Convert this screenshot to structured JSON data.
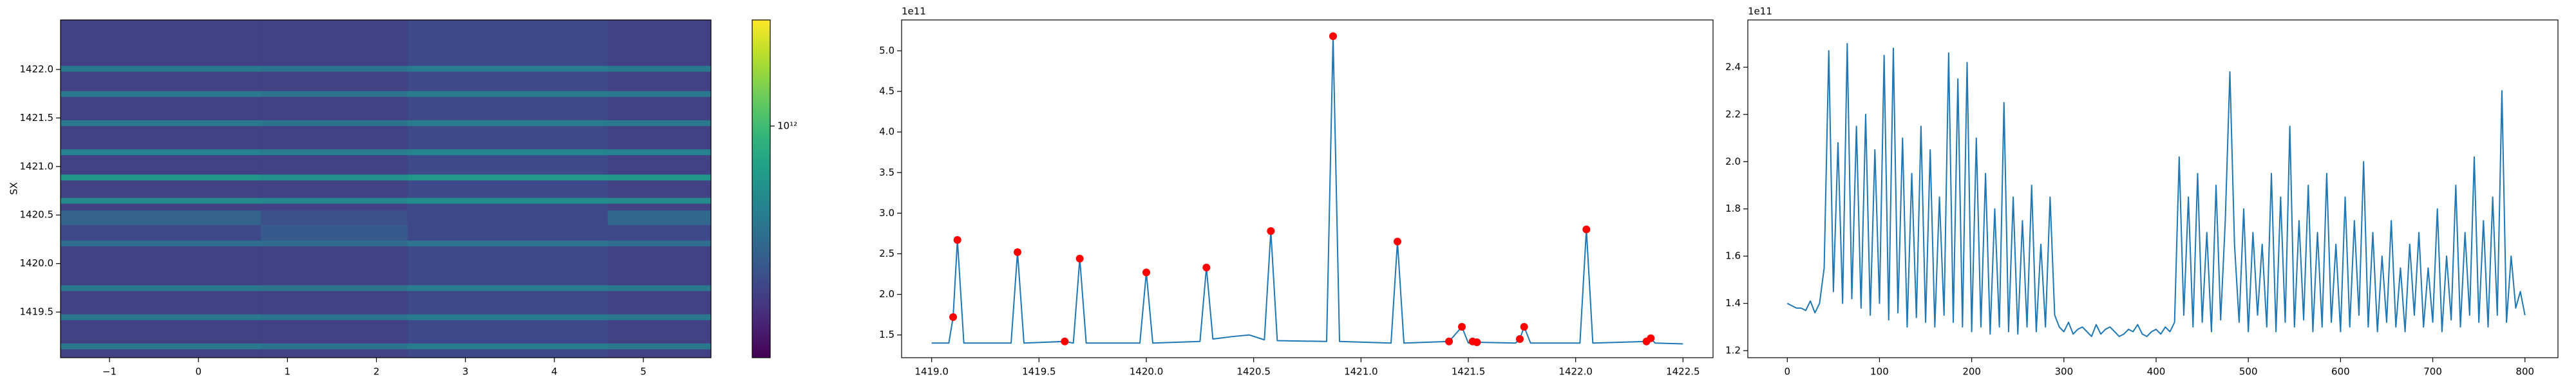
{
  "chart_data": [
    {
      "type": "heatmap",
      "ylabel": "SX",
      "colormap": "viridis",
      "xlim": [
        -1.55,
        5.76
      ],
      "ylim": [
        1419.03,
        1422.51
      ],
      "xticks": [
        {
          "value": -1,
          "label": "−1"
        },
        0,
        1,
        2,
        3,
        4,
        5
      ],
      "yticks": [
        1419.5,
        {
          "value": 1420,
          "label": "1420.0"
        },
        1420.5,
        {
          "value": 1421,
          "label": "1421.0"
        },
        1421.5,
        {
          "value": 1422,
          "label": "1422.0"
        }
      ],
      "xbins": [
        -1.55,
        0.7,
        2.35,
        4.6,
        5.76
      ],
      "ybins": [
        1419.03,
        1419.12,
        1419.18,
        1419.42,
        1419.48,
        1419.72,
        1419.78,
        1420.18,
        1420.24,
        1420.4,
        1420.55,
        1420.62,
        1420.68,
        1420.86,
        1420.92,
        1421.12,
        1421.18,
        1421.42,
        1421.48,
        1421.72,
        1421.78,
        1421.98,
        1422.04,
        1422.51
      ],
      "z": [
        [
          60000000000.0,
          60000000000.0,
          70000000000.0,
          60000000000.0
        ],
        [
          200000000000.0,
          180000000000.0,
          220000000000.0,
          200000000000.0
        ],
        [
          60000000000.0,
          60000000000.0,
          70000000000.0,
          60000000000.0
        ],
        [
          200000000000.0,
          180000000000.0,
          220000000000.0,
          200000000000.0
        ],
        [
          60000000000.0,
          60000000000.0,
          70000000000.0,
          60000000000.0
        ],
        [
          200000000000.0,
          180000000000.0,
          220000000000.0,
          200000000000.0
        ],
        [
          60000000000.0,
          60000000000.0,
          70000000000.0,
          60000000000.0
        ],
        [
          150000000000.0,
          140000000000.0,
          170000000000.0,
          150000000000.0
        ],
        [
          70000000000.0,
          100000000000.0,
          70000000000.0,
          70000000000.0
        ],
        [
          120000000000.0,
          80000000000.0,
          70000000000.0,
          130000000000.0
        ],
        [
          60000000000.0,
          60000000000.0,
          70000000000.0,
          60000000000.0
        ],
        [
          300000000000.0,
          280000000000.0,
          320000000000.0,
          300000000000.0
        ],
        [
          60000000000.0,
          60000000000.0,
          70000000000.0,
          60000000000.0
        ],
        [
          400000000000.0,
          350000000000.0,
          420000000000.0,
          400000000000.0
        ],
        [
          60000000000.0,
          60000000000.0,
          70000000000.0,
          60000000000.0
        ],
        [
          250000000000.0,
          230000000000.0,
          270000000000.0,
          250000000000.0
        ],
        [
          60000000000.0,
          60000000000.0,
          70000000000.0,
          60000000000.0
        ],
        [
          200000000000.0,
          180000000000.0,
          220000000000.0,
          200000000000.0
        ],
        [
          60000000000.0,
          60000000000.0,
          70000000000.0,
          60000000000.0
        ],
        [
          200000000000.0,
          180000000000.0,
          220000000000.0,
          200000000000.0
        ],
        [
          60000000000.0,
          60000000000.0,
          70000000000.0,
          60000000000.0
        ],
        [
          200000000000.0,
          180000000000.0,
          220000000000.0,
          200000000000.0
        ],
        [
          60000000000.0,
          60000000000.0,
          70000000000.0,
          60000000000.0
        ]
      ],
      "colorbar": {
        "scale": "log",
        "lim": [
          20000000000.0,
          6000000000000.0
        ],
        "ticks": [
          {
            "value": 1000000000000.0,
            "label": "10¹²"
          }
        ]
      }
    },
    {
      "type": "line",
      "offset_label": "1e11",
      "color": "#1f77b4",
      "xlim": [
        1418.86,
        1422.64
      ],
      "ylim": [
        1.22,
        5.38
      ],
      "xticks": [
        {
          "value": 1419,
          "label": "1419.0"
        },
        1419.5,
        {
          "value": 1420,
          "label": "1420.0"
        },
        1420.5,
        {
          "value": 1421,
          "label": "1421.0"
        },
        1421.5,
        {
          "value": 1422,
          "label": "1422.0"
        },
        1422.5
      ],
      "yticks": [
        1.5,
        {
          "value": 2,
          "label": "2.0"
        },
        2.5,
        {
          "value": 3,
          "label": "3.0"
        },
        3.5,
        {
          "value": 4,
          "label": "4.0"
        },
        4.5,
        {
          "value": 5,
          "label": "5.0"
        }
      ],
      "x": [
        1419.0,
        1419.08,
        1419.1,
        1419.12,
        1419.15,
        1419.37,
        1419.4,
        1419.43,
        1419.62,
        1419.66,
        1419.69,
        1419.72,
        1419.97,
        1420.0,
        1420.03,
        1420.25,
        1420.28,
        1420.31,
        1420.4,
        1420.48,
        1420.55,
        1420.58,
        1420.61,
        1420.84,
        1420.87,
        1420.9,
        1421.14,
        1421.17,
        1421.2,
        1421.41,
        1421.47,
        1421.5,
        1421.52,
        1421.54,
        1421.72,
        1421.74,
        1421.76,
        1421.79,
        1422.02,
        1422.05,
        1422.08,
        1422.33,
        1422.35,
        1422.37,
        1422.5
      ],
      "values": [
        1.4,
        1.4,
        1.72,
        2.67,
        1.4,
        1.4,
        2.52,
        1.4,
        1.42,
        1.4,
        2.44,
        1.4,
        1.4,
        2.27,
        1.4,
        1.42,
        2.33,
        1.45,
        1.48,
        1.5,
        1.44,
        2.78,
        1.43,
        1.42,
        5.18,
        1.42,
        1.4,
        2.65,
        1.4,
        1.42,
        1.6,
        1.4,
        1.42,
        1.41,
        1.4,
        1.45,
        1.6,
        1.4,
        1.4,
        2.8,
        1.4,
        1.42,
        1.46,
        1.4,
        1.39
      ],
      "peaks": {
        "color": "#ff0000",
        "x": [
          1419.1,
          1419.12,
          1419.4,
          1419.62,
          1419.69,
          1420.0,
          1420.28,
          1420.58,
          1420.87,
          1421.17,
          1421.41,
          1421.47,
          1421.52,
          1421.54,
          1421.74,
          1421.76,
          1422.05,
          1422.33,
          1422.35
        ],
        "values": [
          1.72,
          2.67,
          2.52,
          1.42,
          2.44,
          2.27,
          2.33,
          2.78,
          5.18,
          2.65,
          1.42,
          1.6,
          1.42,
          1.41,
          1.45,
          1.6,
          2.8,
          1.42,
          1.46
        ]
      }
    },
    {
      "type": "line",
      "offset_label": "1e11",
      "color": "#1f77b4",
      "xlim": [
        -42.8,
        835.8
      ],
      "ylim": [
        1.17,
        2.6
      ],
      "xticks": [
        0,
        100,
        200,
        300,
        400,
        500,
        600,
        700,
        800
      ],
      "yticks": [
        1.2,
        1.4,
        1.6,
        1.8,
        {
          "value": 2,
          "label": "2.0"
        },
        2.2,
        2.4
      ],
      "x": [
        0,
        5,
        10,
        15,
        20,
        25,
        30,
        35,
        40,
        45,
        50,
        55,
        60,
        65,
        70,
        75,
        80,
        85,
        90,
        95,
        100,
        105,
        110,
        115,
        120,
        125,
        130,
        135,
        140,
        145,
        150,
        155,
        160,
        165,
        170,
        175,
        180,
        185,
        190,
        195,
        200,
        205,
        210,
        215,
        220,
        225,
        230,
        235,
        240,
        245,
        250,
        255,
        260,
        265,
        270,
        275,
        280,
        285,
        290,
        295,
        300,
        305,
        310,
        315,
        320,
        325,
        330,
        335,
        340,
        345,
        350,
        355,
        360,
        365,
        370,
        375,
        380,
        385,
        390,
        395,
        400,
        405,
        410,
        415,
        420,
        425,
        430,
        435,
        440,
        445,
        450,
        455,
        460,
        465,
        470,
        475,
        480,
        485,
        490,
        495,
        500,
        505,
        510,
        515,
        520,
        525,
        530,
        535,
        540,
        545,
        550,
        555,
        560,
        565,
        570,
        575,
        580,
        585,
        590,
        595,
        600,
        605,
        610,
        615,
        620,
        625,
        630,
        635,
        640,
        645,
        650,
        655,
        660,
        665,
        670,
        675,
        680,
        685,
        690,
        695,
        700,
        705,
        710,
        715,
        720,
        725,
        730,
        735,
        740,
        745,
        750,
        755,
        760,
        765,
        770,
        775,
        780,
        785,
        790,
        795,
        800
      ],
      "values": [
        1.4,
        1.39,
        1.38,
        1.38,
        1.37,
        1.41,
        1.36,
        1.4,
        1.55,
        2.47,
        1.45,
        2.08,
        1.4,
        2.5,
        1.42,
        2.15,
        1.38,
        2.2,
        1.35,
        2.05,
        1.4,
        2.45,
        1.33,
        2.48,
        1.36,
        2.1,
        1.3,
        1.95,
        1.34,
        2.15,
        1.32,
        2.05,
        1.3,
        1.85,
        1.35,
        2.46,
        1.32,
        2.35,
        1.3,
        2.42,
        1.28,
        2.1,
        1.3,
        1.95,
        1.27,
        1.8,
        1.3,
        2.25,
        1.28,
        1.85,
        1.27,
        1.75,
        1.3,
        1.9,
        1.28,
        1.65,
        1.3,
        1.85,
        1.35,
        1.3,
        1.28,
        1.32,
        1.27,
        1.29,
        1.3,
        1.28,
        1.26,
        1.31,
        1.27,
        1.29,
        1.3,
        1.28,
        1.26,
        1.27,
        1.29,
        1.28,
        1.31,
        1.27,
        1.26,
        1.28,
        1.29,
        1.27,
        1.3,
        1.28,
        1.32,
        2.02,
        1.35,
        1.85,
        1.3,
        1.95,
        1.32,
        1.7,
        1.28,
        1.9,
        1.33,
        1.75,
        2.38,
        1.65,
        1.32,
        1.8,
        1.28,
        1.7,
        1.35,
        1.65,
        1.3,
        1.95,
        1.28,
        1.85,
        1.32,
        2.15,
        1.3,
        1.75,
        1.33,
        1.9,
        1.28,
        1.7,
        1.3,
        1.95,
        1.32,
        1.65,
        1.28,
        1.85,
        1.3,
        1.75,
        1.35,
        2.0,
        1.3,
        1.7,
        1.28,
        1.6,
        1.32,
        1.75,
        1.3,
        1.55,
        1.28,
        1.65,
        1.35,
        1.7,
        1.3,
        1.55,
        1.32,
        1.8,
        1.28,
        1.6,
        1.33,
        1.9,
        1.3,
        1.7,
        1.35,
        2.02,
        1.32,
        1.75,
        1.3,
        1.85,
        1.35,
        2.3,
        1.32,
        1.6,
        1.38,
        1.45,
        1.35
      ]
    }
  ]
}
